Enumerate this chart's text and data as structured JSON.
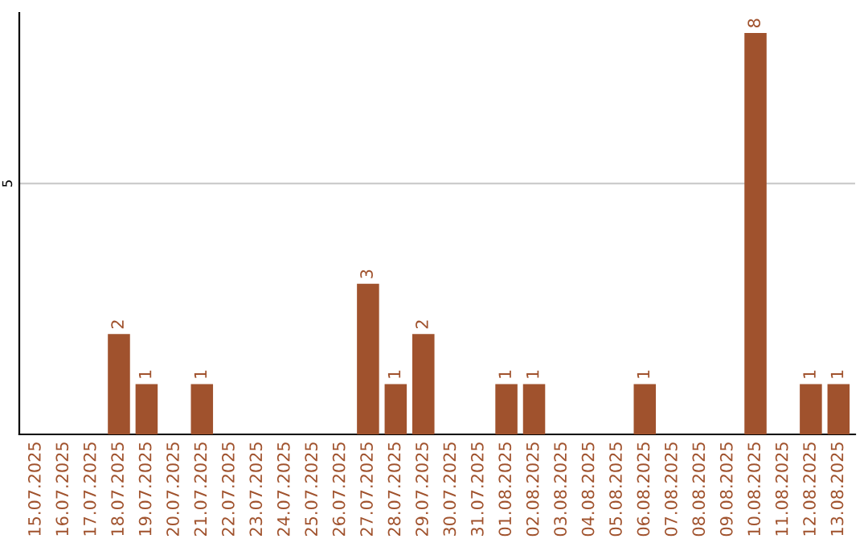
{
  "chart_data": {
    "type": "bar",
    "categories": [
      "15.07.2025",
      "16.07.2025",
      "17.07.2025",
      "18.07.2025",
      "19.07.2025",
      "20.07.2025",
      "21.07.2025",
      "22.07.2025",
      "23.07.2025",
      "24.07.2025",
      "25.07.2025",
      "26.07.2025",
      "27.07.2025",
      "28.07.2025",
      "29.07.2025",
      "30.07.2025",
      "31.07.2025",
      "01.08.2025",
      "02.08.2025",
      "03.08.2025",
      "04.08.2025",
      "05.08.2025",
      "06.08.2025",
      "07.08.2025",
      "08.08.2025",
      "09.08.2025",
      "10.08.2025",
      "11.08.2025",
      "12.08.2025",
      "13.08.2025"
    ],
    "values": [
      0,
      0,
      0,
      2,
      1,
      0,
      1,
      0,
      0,
      0,
      0,
      0,
      3,
      1,
      2,
      0,
      0,
      1,
      1,
      0,
      0,
      0,
      1,
      0,
      0,
      0,
      8,
      0,
      1,
      1
    ],
    "value_labels": [
      null,
      null,
      null,
      "2",
      "1",
      null,
      "1",
      null,
      null,
      null,
      null,
      null,
      "3",
      "1",
      "2",
      null,
      null,
      "1",
      "1",
      null,
      null,
      null,
      "1",
      null,
      null,
      null,
      "8",
      null,
      "1",
      "1"
    ],
    "color": "#a0522d",
    "ylim": [
      0,
      8.4
    ],
    "yticks": [
      5
    ],
    "grid": "y"
  }
}
